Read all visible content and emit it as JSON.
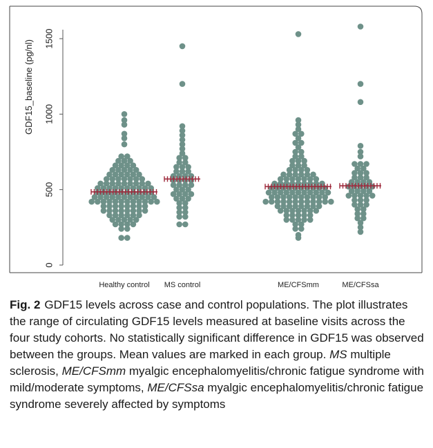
{
  "figure": {
    "label": "Fig. 2",
    "caption_lead": "GDF15 levels across case and control populations. The plot illustrates the range of circulating GDF15 levels measured at baseline visits across the four study cohorts. No statistically significant difference in GDF15 was observed between the groups. Mean values are marked in each group.",
    "abbreviations": [
      {
        "term": "MS",
        "definition": "multiple sclerosis,"
      },
      {
        "term": "ME/CFSmm",
        "definition": "myalgic encephalomyelitis/chronic fatigue syndrome with mild/moderate symptoms,"
      },
      {
        "term": "ME/CFSsa",
        "definition": "myalgic encephalomyelitis/chronic fatigue syndrome severely affected by symptoms"
      }
    ]
  },
  "chart_data": {
    "type": "scatter",
    "subtype": "dot-plot (beeswarm) with mean markers",
    "title": "",
    "xlabel": "",
    "ylabel": "GDF15_baseline (pg/nl)",
    "ylim": [
      0,
      1600
    ],
    "yticks": [
      0,
      500,
      1000,
      1500
    ],
    "yticklabels": [
      "0",
      "500",
      "1000",
      "1500"
    ],
    "grid": false,
    "point_color": "#6e9189",
    "mean_marker_color": "#9e2a3c",
    "categories": [
      "Healthy control",
      "MS control",
      "ME/CFSmm",
      "ME/CFSsa"
    ],
    "series": [
      {
        "values": [
          1000,
          960,
          930,
          870,
          840,
          800,
          720,
          720,
          690,
          690,
          690,
          660,
          660,
          660,
          660,
          630,
          630,
          630,
          630,
          630,
          600,
          600,
          600,
          600,
          600,
          600,
          570,
          570,
          570,
          570,
          570,
          570,
          570,
          540,
          540,
          540,
          540,
          540,
          540,
          540,
          540,
          540,
          510,
          510,
          510,
          510,
          510,
          510,
          510,
          510,
          510,
          510,
          480,
          480,
          480,
          480,
          480,
          480,
          480,
          480,
          480,
          480,
          450,
          450,
          450,
          450,
          450,
          450,
          450,
          450,
          450,
          450,
          450,
          420,
          420,
          420,
          420,
          420,
          420,
          420,
          420,
          420,
          420,
          420,
          420,
          390,
          390,
          390,
          390,
          390,
          390,
          390,
          390,
          360,
          360,
          360,
          360,
          360,
          360,
          360,
          360,
          330,
          330,
          330,
          330,
          330,
          330,
          300,
          300,
          300,
          300,
          300,
          270,
          270,
          270,
          270,
          240,
          240,
          180,
          180
        ],
        "mean": 485
      },
      {
        "values": [
          1450,
          1200,
          920,
          890,
          860,
          830,
          800,
          770,
          740,
          710,
          710,
          680,
          680,
          650,
          650,
          650,
          620,
          620,
          620,
          590,
          590,
          590,
          590,
          560,
          560,
          560,
          560,
          530,
          530,
          530,
          530,
          500,
          500,
          500,
          470,
          470,
          470,
          470,
          440,
          440,
          440,
          410,
          410,
          380,
          380,
          350,
          350,
          320,
          320,
          270,
          270
        ],
        "mean": 570
      },
      {
        "values": [
          1530,
          960,
          930,
          900,
          870,
          870,
          840,
          810,
          810,
          780,
          750,
          750,
          720,
          720,
          690,
          690,
          690,
          660,
          660,
          660,
          630,
          630,
          630,
          630,
          600,
          600,
          600,
          600,
          600,
          600,
          570,
          570,
          570,
          570,
          570,
          570,
          570,
          540,
          540,
          540,
          540,
          540,
          540,
          540,
          540,
          540,
          510,
          510,
          510,
          510,
          510,
          510,
          510,
          510,
          510,
          510,
          480,
          480,
          480,
          480,
          480,
          480,
          480,
          480,
          480,
          480,
          480,
          450,
          450,
          450,
          450,
          450,
          450,
          450,
          450,
          450,
          450,
          420,
          420,
          420,
          420,
          420,
          420,
          420,
          420,
          420,
          420,
          420,
          420,
          390,
          390,
          390,
          390,
          390,
          390,
          390,
          390,
          360,
          360,
          360,
          360,
          360,
          360,
          360,
          330,
          330,
          330,
          330,
          330,
          300,
          300,
          300,
          300,
          300,
          270,
          270,
          240,
          240,
          200,
          180
        ],
        "mean": 520
      },
      {
        "values": [
          1580,
          1200,
          1080,
          790,
          750,
          720,
          670,
          670,
          670,
          640,
          640,
          610,
          610,
          610,
          580,
          580,
          580,
          550,
          550,
          550,
          550,
          520,
          520,
          520,
          520,
          520,
          490,
          490,
          490,
          490,
          460,
          460,
          460,
          460,
          460,
          430,
          430,
          430,
          400,
          400,
          400,
          370,
          370,
          340,
          340,
          310,
          310,
          280,
          250,
          220
        ],
        "mean": 525
      }
    ]
  }
}
